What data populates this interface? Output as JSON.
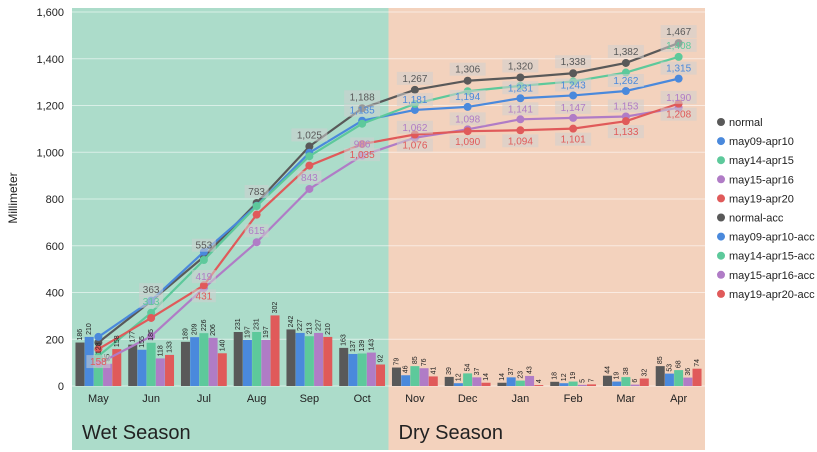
{
  "chart_data": {
    "type": "bar+line",
    "ylabel": "Millimeter",
    "ylim": [
      0,
      1600
    ],
    "yticks": [
      "0",
      "200",
      "400",
      "600",
      "800",
      "1,000",
      "1,200",
      "1,400",
      "1,600"
    ],
    "categories": [
      "May",
      "Jun",
      "Jul",
      "Aug",
      "Sep",
      "Oct",
      "Nov",
      "Dec",
      "Jan",
      "Feb",
      "Mar",
      "Apr"
    ],
    "regions": [
      {
        "label": "Wet Season",
        "from": "May",
        "to": "Oct",
        "color": "#acdcca"
      },
      {
        "label": "Dry Season",
        "from": "Nov",
        "to": "Apr",
        "color": "#f3d2bd"
      }
    ],
    "bar_series": [
      {
        "name": "normal",
        "color": "#595959",
        "values": [
          186,
          177,
          189,
          231,
          242,
          163,
          79,
          39,
          14,
          18,
          44,
          85
        ]
      },
      {
        "name": "may09-apr10",
        "color": "#4a89dc",
        "values": [
          210,
          155,
          209,
          197,
          227,
          137,
          46,
          12,
          37,
          12,
          19,
          53
        ]
      },
      {
        "name": "may14-apr15",
        "color": "#5dc99b",
        "values": [
          128,
          185,
          226,
          231,
          213,
          139,
          85,
          54,
          23,
          19,
          38,
          68
        ]
      },
      {
        "name": "may15-apr16",
        "color": "#b07cc6",
        "values": [
          95,
          118,
          206,
          197,
          227,
          143,
          76,
          37,
          43,
          5,
          6,
          36
        ]
      },
      {
        "name": "may19-apr20",
        "color": "#e05a5a",
        "values": [
          158,
          133,
          140,
          302,
          210,
          92,
          41,
          14,
          4,
          7,
          32,
          74
        ]
      }
    ],
    "line_series": [
      {
        "name": "normal-acc",
        "color": "#595959",
        "values": [
          186,
          363,
          553,
          783,
          1025,
          1188,
          1267,
          1306,
          1320,
          1338,
          1382,
          1467
        ],
        "labels": [
          "",
          "363",
          "553",
          "783",
          "1,025",
          "1,188",
          "1,267",
          "1,306",
          "1,320",
          "1,338",
          "1,382",
          "1,467"
        ]
      },
      {
        "name": "may09-apr10-acc",
        "color": "#4a89dc",
        "values": [
          210,
          365,
          574,
          771,
          998,
          1135,
          1181,
          1194,
          1231,
          1243,
          1262,
          1315
        ],
        "labels": [
          "",
          "",
          "",
          "",
          "",
          "1,135",
          "1,181",
          "1,194",
          "1,231",
          "1,243",
          "1,262",
          "1,315"
        ]
      },
      {
        "name": "may14-apr15-acc",
        "color": "#5dc99b",
        "values": [
          128,
          313,
          539,
          770,
          983,
          1122,
          1207,
          1261,
          1284,
          1303,
          1341,
          1408
        ],
        "labels": [
          "",
          "313",
          "",
          "",
          "",
          "",
          "",
          "",
          "",
          "",
          "",
          "1,408"
        ]
      },
      {
        "name": "may15-apr16-acc",
        "color": "#b07cc6",
        "values": [
          95,
          213,
          419,
          615,
          843,
          986,
          1062,
          1098,
          1141,
          1147,
          1153,
          1190
        ],
        "labels": [
          "",
          "",
          "419",
          "615",
          "843",
          "986",
          "1,062",
          "1,098",
          "1,141",
          "1,147",
          "1,153",
          "1,190"
        ]
      },
      {
        "name": "may19-apr20-acc",
        "color": "#e05a5a",
        "values": [
          158,
          291,
          431,
          733,
          943,
          1035,
          1076,
          1090,
          1094,
          1101,
          1133,
          1208
        ],
        "labels": [
          "158",
          "",
          "431",
          "",
          "",
          "1,035",
          "1,076",
          "1,090",
          "1,094",
          "1,101",
          "1,133",
          "1,208"
        ]
      }
    ],
    "legend": {
      "placement": "right",
      "entries": [
        "normal",
        "may09-apr10",
        "may14-apr15",
        "may15-apr16",
        "may19-apr20",
        "normal-acc",
        "may09-apr10-acc",
        "may14-apr15-acc",
        "may15-apr16-acc",
        "may19-apr20-acc"
      ]
    },
    "grid": true
  }
}
